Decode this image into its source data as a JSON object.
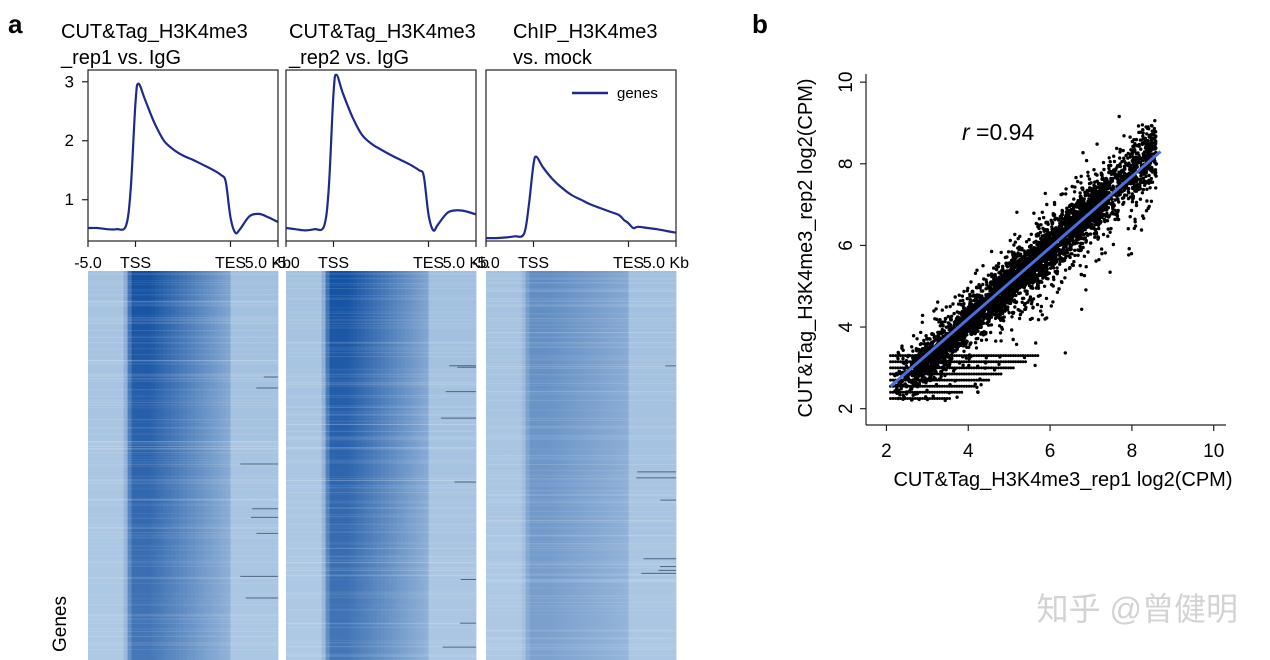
{
  "figure": {
    "panel_a_letter": "a",
    "panel_b_letter": "b",
    "watermark": "知乎 @曾健明"
  },
  "colors": {
    "profile_line": "#1f2a8c",
    "heat_light": "#c7dcef",
    "heat_dark": "#0b4a9e",
    "fit_line": "#4a6fe0",
    "points": "#000000"
  },
  "chart_data": [
    {
      "type": "line",
      "panel": "a",
      "title_line1": "CUT&Tag_H3K4me3",
      "title_line2": "_rep1 vs. IgG",
      "x_tick_labels": [
        "-5.0",
        "TSS",
        "TES",
        "5.0 Kb"
      ],
      "x_tick_positions": [
        -5,
        0,
        10,
        15
      ],
      "xlim": [
        -5,
        15
      ],
      "ylim": [
        0.3,
        3.2
      ],
      "y_ticks": [
        1,
        2,
        3
      ],
      "series": [
        {
          "name": "genes",
          "x": [
            -5,
            -4,
            -3,
            -2,
            -1,
            -0.5,
            0,
            0.3,
            1,
            2,
            3,
            4,
            5,
            6,
            7,
            8,
            9,
            9.5,
            10,
            10.5,
            11,
            12,
            13,
            14,
            15
          ],
          "y": [
            0.52,
            0.52,
            0.5,
            0.5,
            0.56,
            1.2,
            2.65,
            2.97,
            2.7,
            2.3,
            2.0,
            1.85,
            1.75,
            1.68,
            1.6,
            1.52,
            1.42,
            1.3,
            0.7,
            0.44,
            0.5,
            0.72,
            0.76,
            0.7,
            0.62
          ]
        }
      ]
    },
    {
      "type": "line",
      "panel": "a",
      "title_line1": "CUT&Tag_H3K4me3",
      "title_line2": "_rep2 vs. IgG",
      "x_tick_labels": [
        "-5.0",
        "TSS",
        "TES",
        "5.0 Kb"
      ],
      "x_tick_positions": [
        -5,
        0,
        10,
        15
      ],
      "xlim": [
        -5,
        15
      ],
      "ylim": [
        0.3,
        3.2
      ],
      "y_ticks": [
        1,
        2,
        3
      ],
      "series": [
        {
          "name": "genes",
          "x": [
            -5,
            -4,
            -3,
            -2,
            -1,
            -0.5,
            0,
            0.3,
            1,
            2,
            3,
            4,
            5,
            6,
            7,
            8,
            9,
            9.5,
            10,
            10.5,
            11,
            12,
            13,
            14,
            15
          ],
          "y": [
            0.52,
            0.5,
            0.48,
            0.5,
            0.55,
            1.2,
            2.8,
            3.12,
            2.8,
            2.4,
            2.1,
            1.95,
            1.85,
            1.76,
            1.68,
            1.6,
            1.5,
            1.4,
            0.75,
            0.48,
            0.58,
            0.78,
            0.82,
            0.8,
            0.75
          ]
        }
      ]
    },
    {
      "type": "line",
      "panel": "a",
      "title_line1": "ChIP_H3K4me3",
      "title_line2": "vs. mock",
      "x_tick_labels": [
        "-5.0",
        "TSS",
        "TES",
        "5.0 Kb"
      ],
      "x_tick_positions": [
        -5,
        0,
        10,
        15
      ],
      "xlim": [
        -5,
        15
      ],
      "ylim": [
        0.3,
        3.2
      ],
      "y_ticks": [
        1,
        2,
        3
      ],
      "legend": "genes",
      "series": [
        {
          "name": "genes",
          "x": [
            -5,
            -4,
            -3,
            -2,
            -1,
            -0.5,
            0,
            0.3,
            1,
            2,
            3,
            4,
            5,
            6,
            7,
            8,
            9,
            9.5,
            10,
            10.5,
            11,
            12,
            13,
            14,
            15
          ],
          "y": [
            0.35,
            0.35,
            0.36,
            0.38,
            0.42,
            0.9,
            1.6,
            1.73,
            1.55,
            1.35,
            1.2,
            1.08,
            1.0,
            0.92,
            0.86,
            0.8,
            0.74,
            0.66,
            0.6,
            0.52,
            0.54,
            0.52,
            0.5,
            0.47,
            0.44
          ]
        }
      ]
    },
    {
      "type": "heatmap",
      "panel": "a",
      "ylabel": "Genes",
      "peak_intensity": [
        0.95,
        0.95,
        0.55
      ]
    },
    {
      "type": "scatter",
      "panel": "b",
      "xlabel": "CUT&Tag_H3K4me3_rep1 log2(CPM)",
      "ylabel": "CUT&Tag_H3K4me3_rep2 log2(CPM)",
      "xlim": [
        1.5,
        10.3
      ],
      "ylim": [
        1.6,
        10.2
      ],
      "x_ticks": [
        2,
        4,
        6,
        8,
        10
      ],
      "y_ticks": [
        2,
        4,
        6,
        8,
        10
      ],
      "annotation_r": "r",
      "annotation_value": " =0.94",
      "correlation": 0.94,
      "fit_line": {
        "x": [
          2.1,
          8.7
        ],
        "y": [
          2.55,
          8.3
        ]
      }
    }
  ]
}
